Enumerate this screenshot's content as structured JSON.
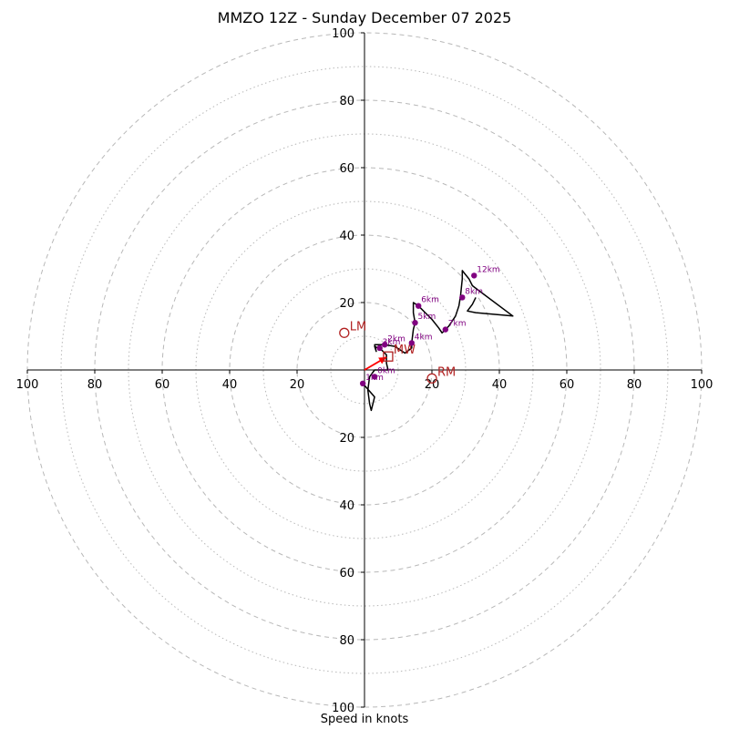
{
  "chart_data": {
    "type": "hodograph",
    "title": "MMZO 12Z - Sunday December 07 2025",
    "xlabel": "Speed in knots",
    "ylabel": "",
    "range": [
      -100,
      100
    ],
    "rings": [
      20,
      40,
      60,
      80,
      100
    ],
    "dotted_rings": [
      10,
      30,
      50,
      70,
      90
    ],
    "tick_labels": {
      "x": [
        "100",
        "80",
        "60",
        "40",
        "20",
        "20",
        "40",
        "60",
        "80",
        "100"
      ],
      "y": [
        "100",
        "80",
        "60",
        "40",
        "20",
        "20",
        "40",
        "60",
        "80",
        "100"
      ]
    },
    "x_ticks": [
      -100,
      -80,
      -60,
      -40,
      -20,
      20,
      40,
      60,
      80,
      100
    ],
    "y_ticks": [
      100,
      80,
      60,
      40,
      20,
      -20,
      -40,
      -60,
      -80,
      -100
    ],
    "trace": [
      [
        -0.5,
        -4
      ],
      [
        3,
        -8
      ],
      [
        2,
        -12
      ],
      [
        1.5,
        -10
      ],
      [
        1,
        -6
      ],
      [
        1.5,
        -2
      ],
      [
        3,
        0
      ],
      [
        5,
        0
      ],
      [
        7,
        0
      ],
      [
        6.5,
        2
      ],
      [
        6.5,
        4.5
      ],
      [
        5,
        6
      ],
      [
        3,
        7
      ],
      [
        3.5,
        5.5
      ],
      [
        3,
        7.5
      ],
      [
        6,
        7.5
      ],
      [
        9,
        7
      ],
      [
        12,
        5
      ],
      [
        14,
        6.5
      ],
      [
        14,
        8
      ],
      [
        14.5,
        12
      ],
      [
        15,
        14
      ],
      [
        14.5,
        17
      ],
      [
        14.5,
        20
      ],
      [
        16,
        19
      ],
      [
        18,
        17
      ],
      [
        20,
        15
      ],
      [
        22,
        12.5
      ],
      [
        23,
        11
      ],
      [
        25,
        13
      ],
      [
        27,
        16
      ],
      [
        28,
        19
      ],
      [
        28.5,
        22
      ],
      [
        29,
        27
      ],
      [
        29,
        29.5
      ],
      [
        31,
        27
      ],
      [
        32,
        25
      ],
      [
        34,
        23.5
      ],
      [
        44,
        16
      ],
      [
        33,
        17
      ],
      [
        30.5,
        17.5
      ],
      [
        32,
        19.5
      ],
      [
        33,
        21.5
      ]
    ],
    "height_markers": [
      {
        "label": "0km",
        "u": 3,
        "v": -2
      },
      {
        "label": "1km",
        "u": -0.5,
        "v": -4
      },
      {
        "label": "2km",
        "u": 6,
        "v": 7.5
      },
      {
        "label": "3km",
        "u": 4.5,
        "v": 6.5
      },
      {
        "label": "4km",
        "u": 14,
        "v": 8
      },
      {
        "label": "5km",
        "u": 15,
        "v": 14
      },
      {
        "label": "6km",
        "u": 16,
        "v": 19
      },
      {
        "label": "7km",
        "u": 24,
        "v": 12
      },
      {
        "label": "8km",
        "u": 29,
        "v": 21.5
      },
      {
        "label": "12km",
        "u": 32.5,
        "v": 28
      }
    ],
    "storm_motion": [
      {
        "label": "LM",
        "u": -6,
        "v": 11,
        "marker": "circle"
      },
      {
        "label": "RM",
        "u": 20,
        "v": -2.5,
        "marker": "circle"
      },
      {
        "label": "MW",
        "u": 7,
        "v": 4,
        "marker": "square"
      }
    ],
    "mean_wind_vector": {
      "u": 6.5,
      "v": 3.8
    },
    "colors": {
      "trace": "#000000",
      "markers": "#800080",
      "storm": "#b22222",
      "vector": "#ff0000",
      "grid": "#b8b8b8",
      "axis": "#000000"
    }
  }
}
